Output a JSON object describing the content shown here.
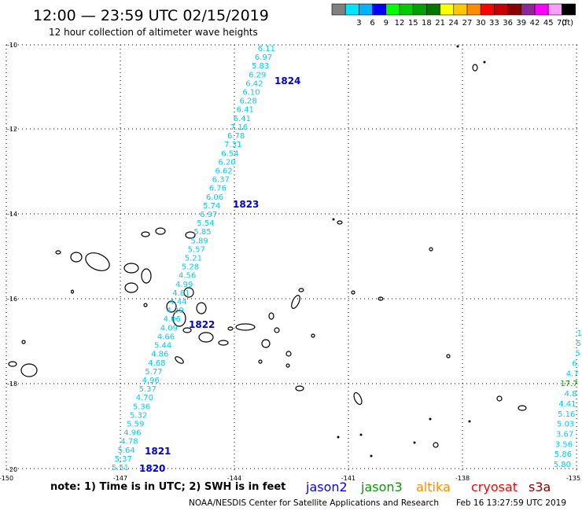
{
  "header": {
    "title": "12:00 — 23:59 UTC 02/15/2019",
    "subtitle": "12 hour collection of altimeter wave heights"
  },
  "legend": {
    "unit": "(ft)",
    "swatches": [
      {
        "color": "#808080",
        "label": ""
      },
      {
        "color": "#00e5ff",
        "label": "3"
      },
      {
        "color": "#00b4ff",
        "label": "6"
      },
      {
        "color": "#0000ff",
        "label": "9"
      },
      {
        "color": "#00ff00",
        "label": "12"
      },
      {
        "color": "#00cc00",
        "label": "15"
      },
      {
        "color": "#00a000",
        "label": "18"
      },
      {
        "color": "#007800",
        "label": "21"
      },
      {
        "color": "#ffff00",
        "label": "24"
      },
      {
        "color": "#ffc800",
        "label": "27"
      },
      {
        "color": "#ff8c00",
        "label": "30"
      },
      {
        "color": "#ff0000",
        "label": "33"
      },
      {
        "color": "#c80000",
        "label": "36"
      },
      {
        "color": "#8b0000",
        "label": "39"
      },
      {
        "color": "#8c2896",
        "label": "42"
      },
      {
        "color": "#ff00ff",
        "label": "45"
      },
      {
        "color": "#ff9cff",
        "label": "70"
      },
      {
        "color": "#000000",
        "label": ""
      }
    ]
  },
  "axes": {
    "lat_labels": [
      "-10",
      "-12",
      "-14",
      "-16",
      "-18",
      "-20"
    ],
    "lon_labels": [
      "-150",
      "-147",
      "-144",
      "-141",
      "-138",
      "-135"
    ]
  },
  "tracks": {
    "main_color": "#00ccff",
    "main_values": [
      "6.11",
      "6.97",
      "5.83",
      "6.29",
      "6.42",
      "6.10",
      "6.28",
      "6.41",
      "6.41",
      "7.16",
      "6.78",
      "7.31",
      "6.54",
      "6.20",
      "6.62",
      "6.37",
      "6.76",
      "6.06",
      "5.74",
      "6.97",
      "5.54",
      "5.85",
      "5.89",
      "5.57",
      "5.21",
      "5.28",
      "4.56",
      "4.99",
      "4.81",
      "4.44",
      "4.29",
      "4.06",
      "4.09",
      "4.66",
      "5.44",
      "4.86",
      "4.68",
      "5.77",
      "4.96",
      "5.37",
      "4.70",
      "5.36",
      "5.32",
      "5.59",
      "4.96",
      "4.78",
      "5.64",
      "5.37",
      "5.51"
    ],
    "pass_labels": [
      {
        "label": "1824"
      },
      {
        "label": "1823"
      },
      {
        "label": "1822"
      },
      {
        "label": "1821"
      },
      {
        "label": "1820"
      }
    ],
    "right_values": [
      "1",
      "5",
      "5",
      "6.",
      "4.7",
      "17.7",
      "4.8",
      "4.41",
      "5.16",
      "5.03",
      "3.67",
      "3.56",
      "5.86",
      "5.80"
    ],
    "right_green_value": "17.7"
  },
  "footer": {
    "note": "note: 1) Time is in UTC; 2) SWH is in feet",
    "satellites": [
      {
        "name": "jason2",
        "color": "#0000ff"
      },
      {
        "name": "jason3",
        "color": "#00a000"
      },
      {
        "name": "altika",
        "color": "#ff8c00"
      },
      {
        "name": "cryosat",
        "color": "#ff0000"
      },
      {
        "name": "s3a",
        "color": "#8b0000"
      }
    ],
    "credit": "NOAA/NESDIS Center for Satellite Applications and Research",
    "timestamp": "Feb 16 13:27:59 UTC 2019"
  }
}
